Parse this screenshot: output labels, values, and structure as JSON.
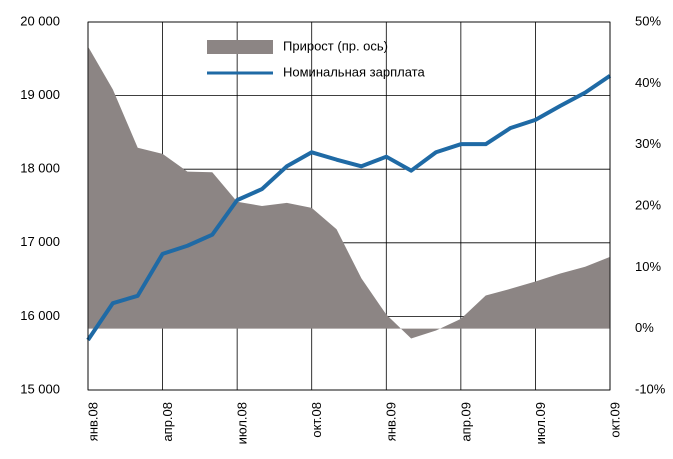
{
  "chart_data": {
    "type": "line",
    "categories": [
      "янв.08",
      null,
      null,
      "апр.08",
      null,
      null,
      "июл.08",
      null,
      null,
      "окт.08",
      null,
      null,
      "янв.09",
      null,
      null,
      "апр.09",
      null,
      null,
      "июл.09",
      null,
      null,
      "окт.09"
    ],
    "series": [
      {
        "name": "Прирост (пр. ось)",
        "color": "#8c8584",
        "axis": "y2",
        "kind": "area",
        "values": [
          46,
          39,
          29.5,
          28.5,
          25.6,
          25.5,
          20.7,
          20,
          20.5,
          19.7,
          16.2,
          8.2,
          2.3,
          -1.6,
          -0.3,
          1.6,
          5.4,
          6.5,
          7.7,
          9,
          10.1,
          11.7
        ]
      },
      {
        "name": "Номинальная зарплата",
        "color": "#1f6aa5",
        "kind": "line",
        "values": [
          15680,
          16180,
          16280,
          16850,
          16960,
          17110,
          17580,
          17730,
          18040,
          18230,
          18130,
          18040,
          18170,
          17980,
          18230,
          18340,
          18340,
          18560,
          18670,
          18860,
          19040,
          19270
        ]
      }
    ],
    "ylim": [
      15000,
      20000
    ],
    "yticks": [
      {
        "value": 15000,
        "label": "15 000"
      },
      {
        "value": 16000,
        "label": "16 000"
      },
      {
        "value": 17000,
        "label": "17 000"
      },
      {
        "value": 18000,
        "label": "18 000"
      },
      {
        "value": 19000,
        "label": "19 000"
      },
      {
        "value": 20000,
        "label": "20 000"
      }
    ],
    "y2lim": [
      -10,
      50
    ],
    "y2ticks": [
      {
        "value": -10,
        "label": "-10%"
      },
      {
        "value": 0,
        "label": "0%"
      },
      {
        "value": 10,
        "label": "10%"
      },
      {
        "value": 20,
        "label": "20%"
      },
      {
        "value": 30,
        "label": "30%"
      },
      {
        "value": 40,
        "label": "40%"
      },
      {
        "value": 50,
        "label": "50%"
      }
    ],
    "grid": true,
    "legend": "top"
  }
}
